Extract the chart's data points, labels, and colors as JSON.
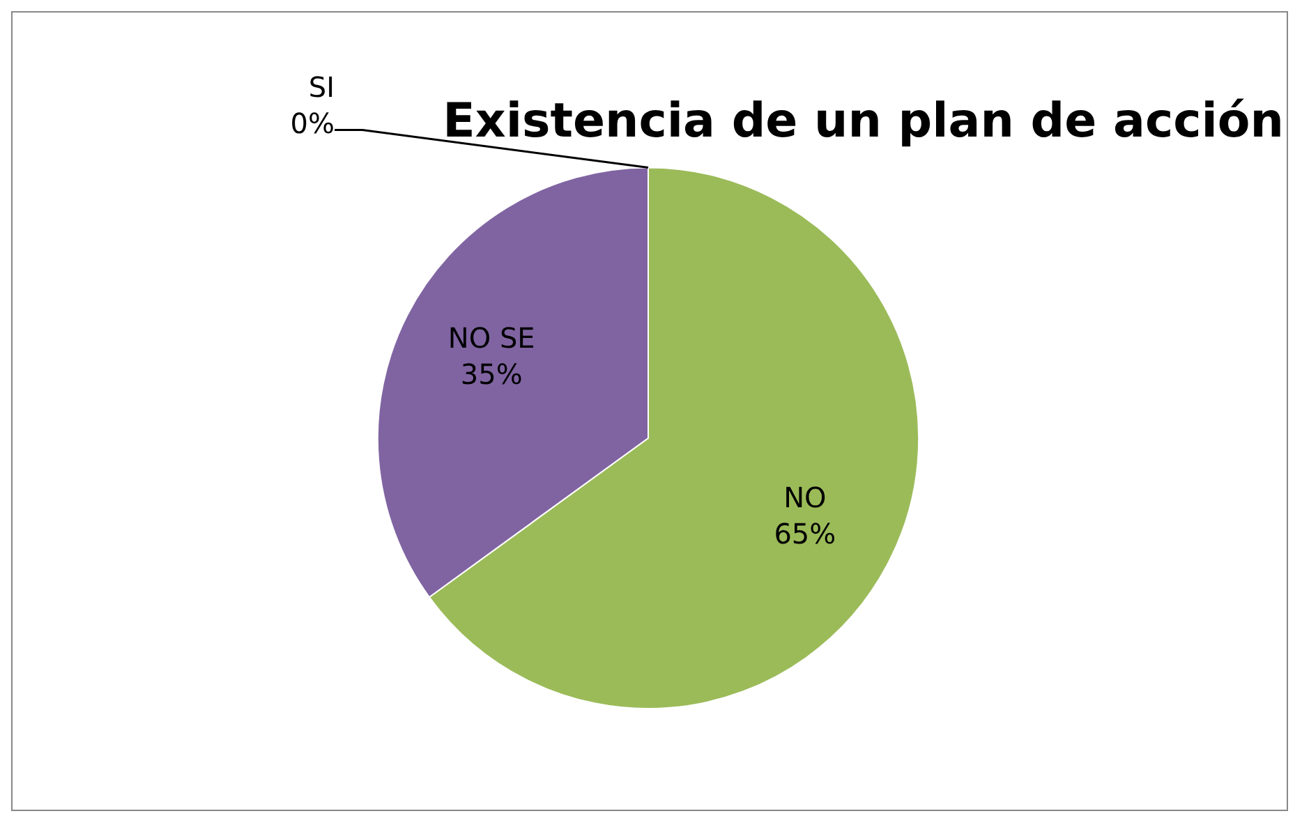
{
  "chart_data": {
    "type": "pie",
    "title": "Existencia de un plan de acción",
    "categories": [
      "SI",
      "NO",
      "NO SE"
    ],
    "values": [
      0,
      65,
      35
    ],
    "value_labels": [
      "0%",
      "65%",
      "35%"
    ],
    "colors": [
      "#4f81bd",
      "#9bbb59",
      "#8064a2"
    ],
    "legend": false
  }
}
